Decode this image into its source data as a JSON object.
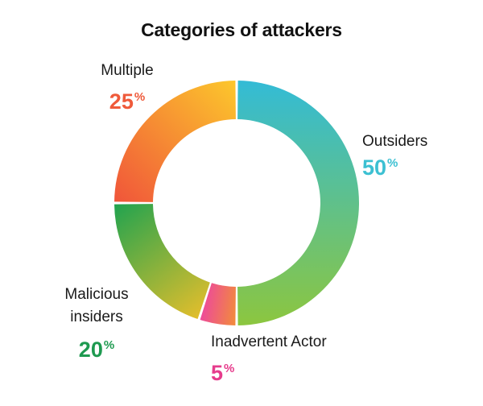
{
  "chart_data": {
    "type": "pie",
    "title": "Categories of attackers",
    "donut": true,
    "legend": "none",
    "slices": [
      {
        "label": "Outsiders",
        "value": 50,
        "percent_sign": "%",
        "label_color": "#3cc0d2",
        "gradient": [
          "#8cc63f",
          "#33bbd6"
        ]
      },
      {
        "label": "Inadvertent Actor",
        "value": 5,
        "percent_sign": "%",
        "label_color": "#e63c8c",
        "gradient": [
          "#ed4a9a",
          "#f28c3a"
        ]
      },
      {
        "label": "Malicious insiders",
        "value": 20,
        "percent_sign": "%",
        "label_color": "#1e9a50",
        "gradient": [
          "#21a34f",
          "#e2be2c"
        ]
      },
      {
        "label": "Multiple",
        "value": 25,
        "percent_sign": "%",
        "label_color": "#ef5a3a",
        "gradient": [
          "#fcc72c",
          "#f0553a"
        ]
      }
    ]
  }
}
